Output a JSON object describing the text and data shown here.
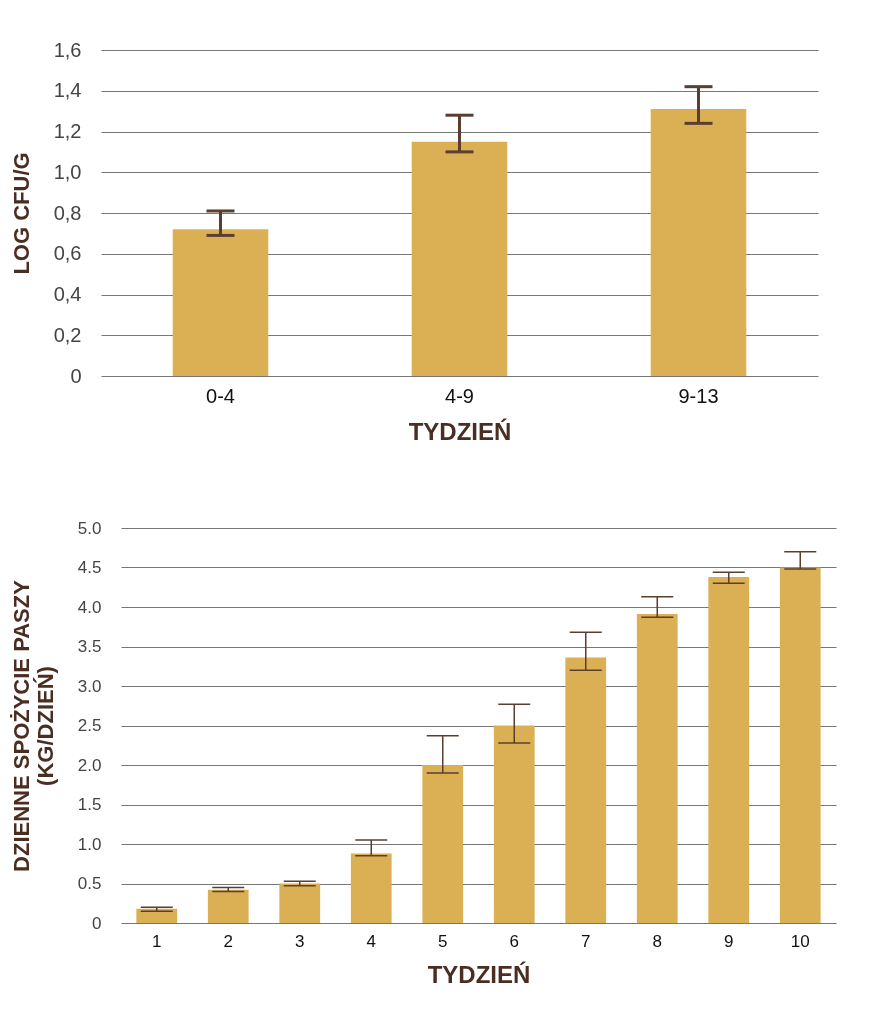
{
  "chart_data": [
    {
      "type": "bar",
      "xlabel": "TYDZIEŃ",
      "ylabel": "LOG CFU/G",
      "categories": [
        "0-4",
        "4-9",
        "9-13"
      ],
      "values": [
        0.72,
        1.15,
        1.31
      ],
      "errors": [
        [
          0.69,
          0.81
        ],
        [
          1.1,
          1.28
        ],
        [
          1.24,
          1.42
        ]
      ],
      "color": "#dbb054",
      "ylim": [
        0,
        1.6
      ],
      "yticks": [
        0,
        {
          "value": 0.2,
          "label": "0,2"
        },
        {
          "value": 0.4,
          "label": "0,4"
        },
        {
          "value": 0.6,
          "label": "0,6"
        },
        {
          "value": 0.8,
          "label": "0,8"
        },
        {
          "value": 1.0,
          "label": "1,0"
        },
        {
          "value": 1.2,
          "label": "1,2"
        },
        {
          "value": 1.4,
          "label": "1,4"
        },
        {
          "value": 1.6,
          "label": "1,6"
        }
      ],
      "grid": "y"
    },
    {
      "type": "bar",
      "xlabel": "TYDZIEŃ",
      "ylabel": "DZIENNE SPOŻYCIE PASZY\n(KG/DZIEŃ)",
      "categories": [
        "1",
        "2",
        "3",
        "4",
        "5",
        "6",
        "7",
        "8",
        "9",
        "10"
      ],
      "values": [
        0.18,
        0.42,
        0.5,
        0.88,
        2.0,
        2.5,
        3.36,
        3.91,
        4.38,
        4.5
      ],
      "errors": [
        [
          0.15,
          0.2
        ],
        [
          0.4,
          0.45
        ],
        [
          0.47,
          0.53
        ],
        [
          0.85,
          1.05
        ],
        [
          1.9,
          2.37
        ],
        [
          2.28,
          2.77
        ],
        [
          3.2,
          3.68
        ],
        [
          3.87,
          4.13
        ],
        [
          4.3,
          4.44
        ],
        [
          4.48,
          4.7
        ]
      ],
      "color": "#dbb054",
      "ylim": [
        0,
        5
      ],
      "yticks": [
        0,
        {
          "value": 0.5,
          "label": "0.5"
        },
        {
          "value": 1,
          "label": "1.0"
        },
        {
          "value": 1.5,
          "label": "1.5"
        },
        {
          "value": 2,
          "label": "2.0"
        },
        {
          "value": 2.5,
          "label": "2.5"
        },
        {
          "value": 3,
          "label": "3.0"
        },
        {
          "value": 3.5,
          "label": "3.5"
        },
        {
          "value": 4,
          "label": "4.0"
        },
        {
          "value": 4.5,
          "label": "4.5"
        },
        {
          "value": 5,
          "label": "5.0"
        }
      ],
      "grid": "y"
    }
  ]
}
